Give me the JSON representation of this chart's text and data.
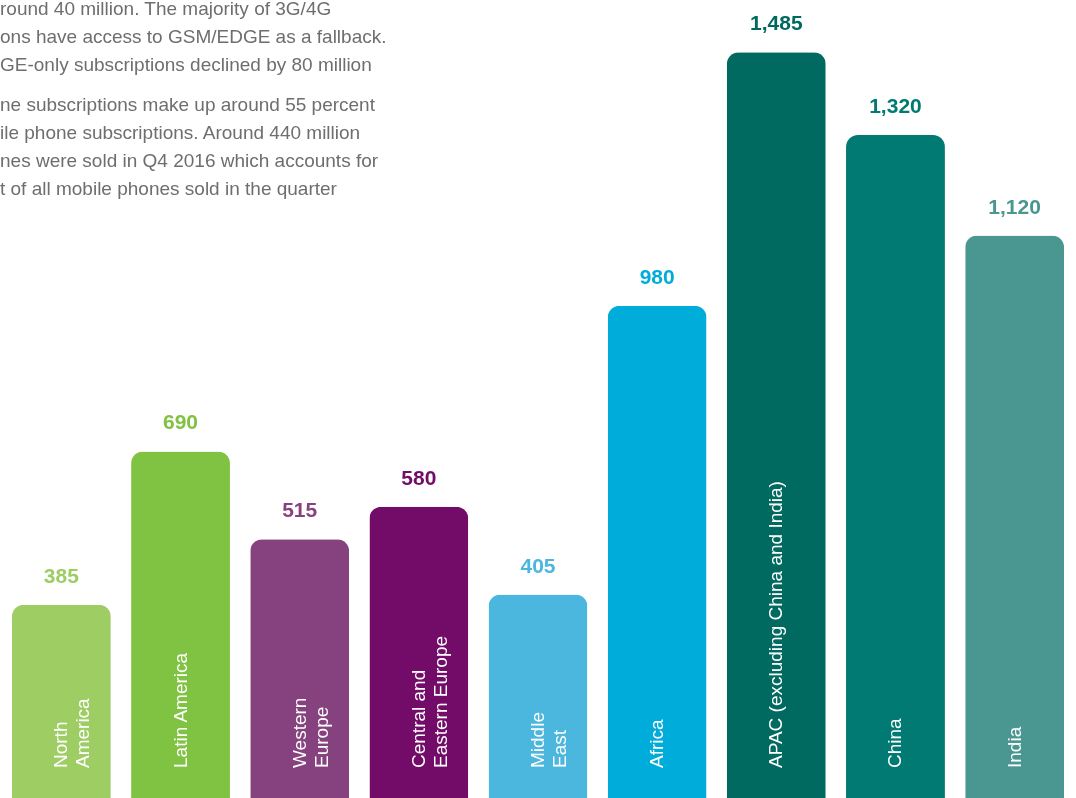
{
  "chart_data": {
    "type": "bar",
    "categories": [
      "North\nAmerica",
      "Latin America",
      "Western\nEurope",
      "Central and\nEastern Europe",
      "Middle\nEast",
      "Africa",
      "APAC (excluding China and India)",
      "China",
      "India"
    ],
    "values": [
      385,
      690,
      515,
      580,
      405,
      980,
      1485,
      1320,
      1120
    ],
    "colors": [
      "#9dcd63",
      "#80c241",
      "#86417f",
      "#720c68",
      "#4bb6de",
      "#00acd9",
      "#006a60",
      "#007a72",
      "#4a9792"
    ],
    "value_labels": [
      "385",
      "690",
      "515",
      "580",
      "405",
      "980",
      "1,485",
      "1,320",
      "1,120"
    ],
    "annotations": [
      "round 40 million. The majority of 3G/4G\nons have access to GSM/EDGE as a fallback.\nGE-only subscriptions declined by 80 million",
      "ne subscriptions make up around 55 percent\nile phone subscriptions. Around 440 million\nnes were sold in Q4 2016 which accounts for\nt of all mobile phones sold in the quarter"
    ]
  }
}
